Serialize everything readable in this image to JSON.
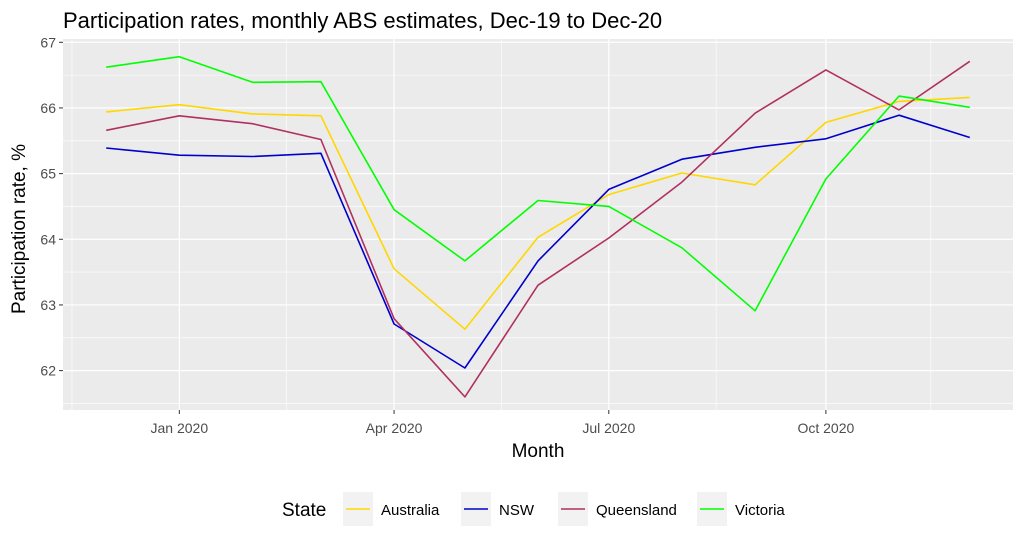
{
  "chart_data": {
    "type": "line",
    "title": "Participation rates, monthly ABS estimates, Dec-19 to Dec-20",
    "xlabel": "Month",
    "ylabel": "Participation rate, %",
    "x": [
      "2019-12",
      "2020-01",
      "2020-02",
      "2020-03",
      "2020-04",
      "2020-05",
      "2020-06",
      "2020-07",
      "2020-08",
      "2020-09",
      "2020-10",
      "2020-11",
      "2020-12"
    ],
    "x_ticks": [
      {
        "month": "2020-01",
        "label": "Jan 2020"
      },
      {
        "month": "2020-04",
        "label": "Apr 2020"
      },
      {
        "month": "2020-07",
        "label": "Jul 2020"
      },
      {
        "month": "2020-10",
        "label": "Oct 2020"
      }
    ],
    "y_ticks": [
      62,
      63,
      64,
      65,
      66,
      67
    ],
    "ylim": [
      61.4,
      67.05
    ],
    "grid": true,
    "legend": {
      "title": "State",
      "position": "bottom"
    },
    "series": [
      {
        "name": "Australia",
        "color": "#FFD700",
        "values": [
          65.94,
          66.05,
          65.91,
          65.88,
          63.55,
          62.63,
          64.03,
          64.68,
          65.01,
          64.83,
          65.78,
          66.1,
          66.16
        ]
      },
      {
        "name": "NSW",
        "color": "#0000CD",
        "values": [
          65.39,
          65.28,
          65.26,
          65.31,
          62.71,
          62.04,
          63.67,
          64.76,
          65.22,
          65.4,
          65.53,
          65.89,
          65.55
        ]
      },
      {
        "name": "Queensland",
        "color": "#B03060",
        "values": [
          65.66,
          65.88,
          65.76,
          65.52,
          62.79,
          61.6,
          63.3,
          64.02,
          64.87,
          65.92,
          66.58,
          65.97,
          66.71
        ]
      },
      {
        "name": "Victoria",
        "color": "#00FF00",
        "values": [
          66.62,
          66.78,
          66.39,
          66.4,
          64.45,
          63.67,
          64.59,
          64.5,
          63.87,
          62.91,
          64.92,
          66.18,
          66.01
        ]
      }
    ]
  }
}
